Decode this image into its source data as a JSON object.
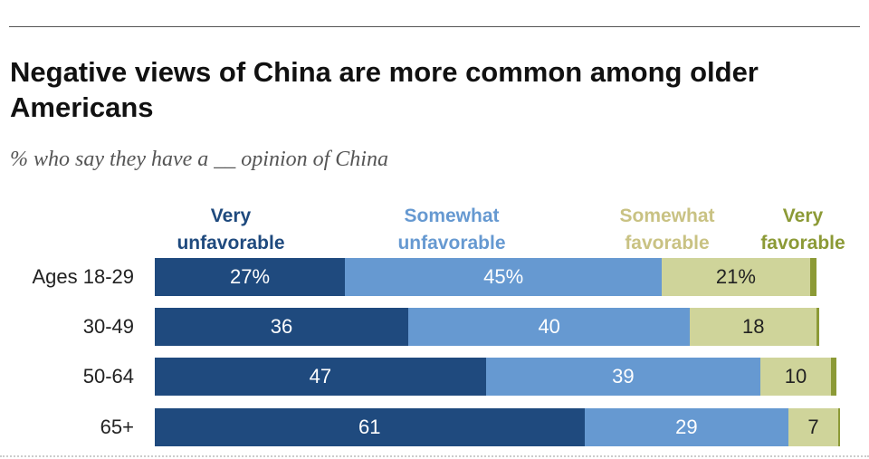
{
  "title": "Negative views of China are more common among older Americans",
  "subtitle": "% who say they have a __ opinion of China",
  "colors": {
    "very_unfavorable": "#1f4a7e",
    "somewhat_unfavorable": "#6699d1",
    "somewhat_favorable": "#cfd49a",
    "very_favorable": "#8c9a36",
    "legend_somewhat_favorable_text": "#c9c283"
  },
  "chart_data": {
    "type": "bar",
    "orientation": "horizontal",
    "stacked": true,
    "title": "Negative views of China are more common among older Americans",
    "subtitle": "% who say they have a __ opinion of China",
    "categories": [
      "Ages 18-29",
      "30-49",
      "50-64",
      "65+"
    ],
    "legend_position": "top",
    "series": [
      {
        "name": "Very unfavorable",
        "values": [
          27,
          36,
          47,
          61
        ],
        "labels": [
          "27%",
          "36",
          "47",
          "61"
        ]
      },
      {
        "name": "Somewhat unfavorable",
        "values": [
          45,
          40,
          39,
          29
        ],
        "labels": [
          "45%",
          "40",
          "39",
          "29"
        ]
      },
      {
        "name": "Somewhat favorable",
        "values": [
          21,
          18,
          10,
          7
        ],
        "labels": [
          "21%",
          "18",
          "10",
          "7"
        ]
      },
      {
        "name": "Very favorable",
        "values": [
          1,
          0.4,
          0.8,
          0.2
        ],
        "labels": [
          "",
          "",
          "",
          ""
        ]
      }
    ]
  },
  "legend": [
    {
      "line1": "Very",
      "line2": "unfavorable"
    },
    {
      "line1": "Somewhat",
      "line2": "unfavorable"
    },
    {
      "line1": "Somewhat",
      "line2": "favorable"
    },
    {
      "line1": "Very",
      "line2": "favorable"
    }
  ]
}
